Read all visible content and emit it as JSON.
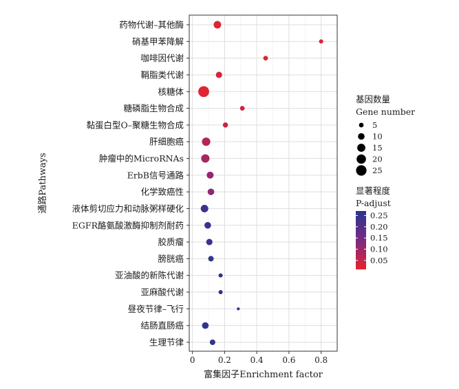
{
  "chart_data": {
    "type": "scatter",
    "xlabel": "富集因子Enrichment factor",
    "ylabel": "通路Pathways",
    "xlim": [
      -0.02,
      0.9
    ],
    "xticks": [
      0,
      0.2,
      0.4,
      0.6,
      0.8
    ],
    "x_tick_labels": [
      "0",
      "0.2",
      "0.4",
      "0.6",
      "0.8"
    ],
    "grid": true,
    "categories": [
      "药物代谢–其他酶",
      "硝基甲苯降解",
      "咖啡因代谢",
      "鞘脂类代谢",
      "核糖体",
      "糖磷脂生物合成",
      "黏蛋白型O–聚糖生物合成",
      "肝细胞癌",
      "肿瘤中的MicroRNAs",
      "ErbB信号通路",
      "化学致癌性",
      "液体剪切应力和动脉粥样硬化",
      "EGFR酪氨酸激酶抑制剂耐药",
      "胶质瘤",
      "膀胱癌",
      "亚油酸的新陈代谢",
      "亚麻酸代谢",
      "昼夜节律–飞行",
      "结肠直肠癌",
      "生理节律"
    ],
    "points": [
      {
        "pathway": "药物代谢–其他酶",
        "enrichment_factor": 0.155,
        "gene_number": 13,
        "p_adjust": 0.02
      },
      {
        "pathway": "硝基甲苯降解",
        "enrichment_factor": 0.8,
        "gene_number": 4,
        "p_adjust": 0.025
      },
      {
        "pathway": "咖啡因代谢",
        "enrichment_factor": 0.455,
        "gene_number": 5,
        "p_adjust": 0.025
      },
      {
        "pathway": "鞘脂类代谢",
        "enrichment_factor": 0.165,
        "gene_number": 9,
        "p_adjust": 0.03
      },
      {
        "pathway": "核糖体",
        "enrichment_factor": 0.07,
        "gene_number": 27,
        "p_adjust": 0.02
      },
      {
        "pathway": "糖磷脂生物合成",
        "enrichment_factor": 0.31,
        "gene_number": 5,
        "p_adjust": 0.04
      },
      {
        "pathway": "黏蛋白型O–聚糖生物合成",
        "enrichment_factor": 0.205,
        "gene_number": 6,
        "p_adjust": 0.05
      },
      {
        "pathway": "肝细胞癌",
        "enrichment_factor": 0.085,
        "gene_number": 16,
        "p_adjust": 0.07
      },
      {
        "pathway": "肿瘤中的MicroRNAs",
        "enrichment_factor": 0.08,
        "gene_number": 16,
        "p_adjust": 0.09
      },
      {
        "pathway": "ErbB信号通路",
        "enrichment_factor": 0.11,
        "gene_number": 11,
        "p_adjust": 0.11
      },
      {
        "pathway": "化学致癌性",
        "enrichment_factor": 0.115,
        "gene_number": 10,
        "p_adjust": 0.12
      },
      {
        "pathway": "液体剪切应力和动脉粥样硬化",
        "enrichment_factor": 0.075,
        "gene_number": 13,
        "p_adjust": 0.24
      },
      {
        "pathway": "EGFR酪氨酸激酶抑制剂耐药",
        "enrichment_factor": 0.095,
        "gene_number": 10,
        "p_adjust": 0.24
      },
      {
        "pathway": "胶质瘤",
        "enrichment_factor": 0.105,
        "gene_number": 9,
        "p_adjust": 0.24
      },
      {
        "pathway": "膀胱癌",
        "enrichment_factor": 0.115,
        "gene_number": 7,
        "p_adjust": 0.25
      },
      {
        "pathway": "亚油酸的新陈代谢",
        "enrichment_factor": 0.175,
        "gene_number": 4,
        "p_adjust": 0.26
      },
      {
        "pathway": "亚麻酸代谢",
        "enrichment_factor": 0.175,
        "gene_number": 4,
        "p_adjust": 0.26
      },
      {
        "pathway": "昼夜节律–飞行",
        "enrichment_factor": 0.285,
        "gene_number": 2,
        "p_adjust": 0.26
      },
      {
        "pathway": "结肠直肠癌",
        "enrichment_factor": 0.08,
        "gene_number": 10,
        "p_adjust": 0.26
      },
      {
        "pathway": "生理节律",
        "enrichment_factor": 0.125,
        "gene_number": 7,
        "p_adjust": 0.26
      }
    ],
    "size_legend": {
      "title_cn": "基因数量",
      "title_en": "Gene number",
      "values": [
        5,
        10,
        15,
        20,
        25
      ]
    },
    "color_legend": {
      "title_cn": "显著程度",
      "title_en": "P-adjust",
      "ticks": [
        0.25,
        0.2,
        0.15,
        0.1,
        0.05
      ],
      "tick_labels": [
        "0.25",
        "0.20",
        "0.15",
        "0.10",
        "0.05"
      ],
      "range": [
        0.01,
        0.27
      ],
      "colors": {
        "low": "#e8232b",
        "mid": "#7a2a84",
        "high": "#2a3590"
      }
    },
    "legend_placement": "right"
  }
}
